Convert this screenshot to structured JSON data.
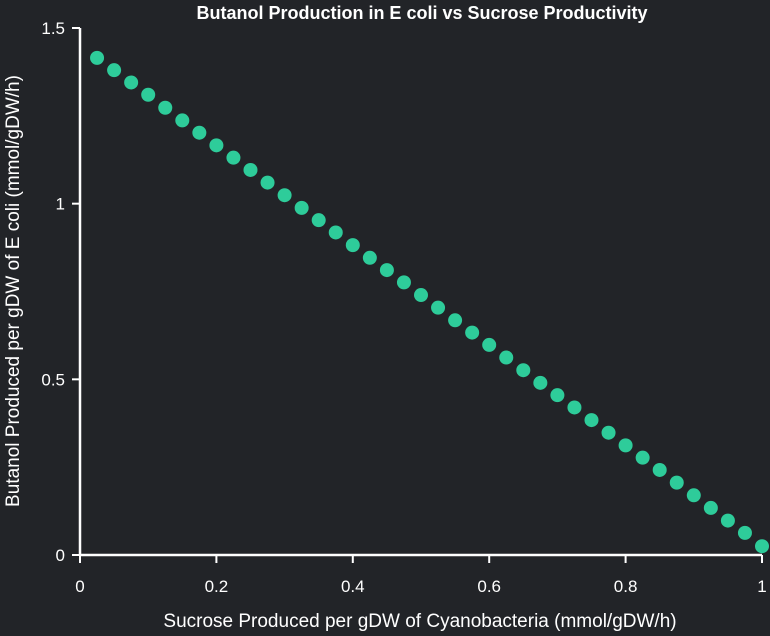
{
  "chart_data": {
    "type": "scatter",
    "title": "Butanol Production in E coli vs Sucrose Productivity",
    "xlabel": "Sucrose Produced per gDW of Cyanobacteria (mmol/gDW/h)",
    "ylabel": "Butanol Produced per gDW of E coli (mmol/gDW/h)",
    "xlim": [
      0,
      1
    ],
    "ylim": [
      0,
      1.5
    ],
    "x_ticks": [
      0,
      0.2,
      0.4,
      0.6,
      0.8,
      1
    ],
    "x_tick_labels": [
      "0",
      "0.2",
      "0.4",
      "0.6",
      "0.8",
      "1"
    ],
    "y_ticks": [
      0,
      0.5,
      1,
      1.5
    ],
    "y_tick_labels": [
      "0",
      "0.5",
      "1",
      "1.5"
    ],
    "grid": false,
    "legend": "none",
    "marker_color": "#2ecc9a",
    "background_color": "#222428",
    "series": [
      {
        "x": [
          0.025,
          0.05,
          0.075,
          0.1,
          0.125,
          0.15,
          0.175,
          0.2,
          0.225,
          0.25,
          0.275,
          0.3,
          0.325,
          0.35,
          0.375,
          0.4,
          0.425,
          0.45,
          0.475,
          0.5,
          0.525,
          0.55,
          0.575,
          0.6,
          0.625,
          0.65,
          0.675,
          0.7,
          0.725,
          0.75,
          0.775,
          0.8,
          0.825,
          0.85,
          0.875,
          0.9,
          0.925,
          0.95,
          0.975,
          1.0
        ],
        "y": [
          1.415,
          1.38,
          1.345,
          1.31,
          1.273,
          1.237,
          1.202,
          1.166,
          1.131,
          1.096,
          1.06,
          1.024,
          0.988,
          0.953,
          0.918,
          0.882,
          0.846,
          0.811,
          0.776,
          0.74,
          0.704,
          0.668,
          0.633,
          0.598,
          0.562,
          0.526,
          0.49,
          0.455,
          0.42,
          0.384,
          0.348,
          0.312,
          0.277,
          0.242,
          0.206,
          0.17,
          0.134,
          0.098,
          0.063,
          0.025
        ]
      }
    ]
  }
}
